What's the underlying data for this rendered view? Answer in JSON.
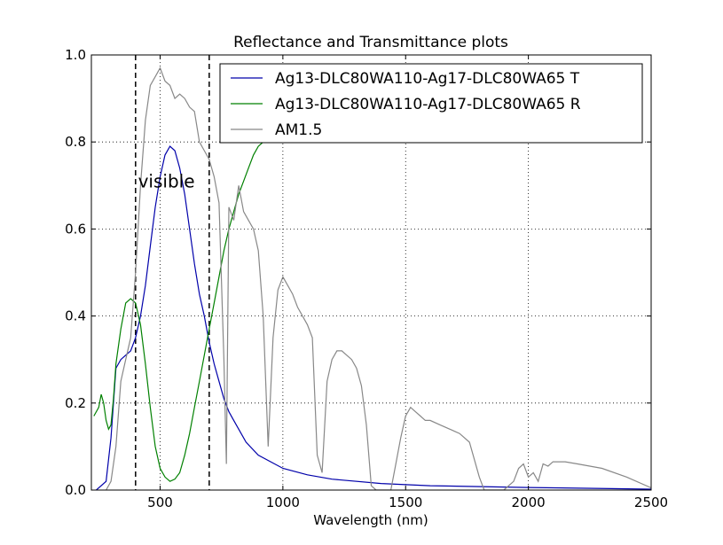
{
  "chart_data": {
    "type": "line",
    "title": "Reflectance and Transmittance plots",
    "xlabel": "Wavelength (nm)",
    "ylabel": "",
    "xlim": [
      220,
      2500
    ],
    "ylim": [
      0,
      1.0
    ],
    "xticks": [
      500,
      1000,
      1500,
      2000,
      2500
    ],
    "yticks": [
      0.0,
      0.2,
      0.4,
      0.6,
      0.8,
      1.0
    ],
    "xtick_labels": [
      "500",
      "1000",
      "1500",
      "2000",
      "2500"
    ],
    "ytick_labels": [
      "0.0",
      "0.2",
      "0.4",
      "0.6",
      "0.8",
      "1.0"
    ],
    "grid": true,
    "legend_position": "top-right",
    "vlines": [
      400,
      700
    ],
    "annotation": {
      "text": "visible",
      "x": 410,
      "y": 0.71
    },
    "series": [
      {
        "name": "Ag13-DLC80WA110-Ag17-DLC80WA65 T",
        "color": "#0000aa",
        "x": [
          240,
          280,
          300,
          320,
          340,
          360,
          380,
          400,
          420,
          440,
          460,
          480,
          500,
          520,
          540,
          560,
          580,
          600,
          620,
          640,
          660,
          680,
          700,
          720,
          740,
          760,
          780,
          800,
          850,
          900,
          1000,
          1100,
          1200,
          1400,
          1600,
          2000,
          2500
        ],
        "y": [
          0.0,
          0.02,
          0.12,
          0.28,
          0.3,
          0.31,
          0.32,
          0.35,
          0.4,
          0.47,
          0.56,
          0.65,
          0.72,
          0.77,
          0.79,
          0.78,
          0.74,
          0.68,
          0.6,
          0.52,
          0.45,
          0.4,
          0.34,
          0.29,
          0.25,
          0.21,
          0.18,
          0.16,
          0.11,
          0.08,
          0.05,
          0.035,
          0.025,
          0.015,
          0.01,
          0.006,
          0.002
        ]
      },
      {
        "name": "Ag13-DLC80WA110-Ag17-DLC80WA65 R",
        "color": "#008000",
        "x": [
          230,
          250,
          260,
          270,
          280,
          290,
          300,
          310,
          320,
          340,
          360,
          380,
          400,
          420,
          440,
          460,
          480,
          500,
          520,
          540,
          560,
          580,
          600,
          620,
          640,
          660,
          680,
          700,
          720,
          740,
          760,
          780,
          800,
          820,
          840,
          860,
          880,
          900,
          920,
          940
        ],
        "y": [
          0.17,
          0.19,
          0.22,
          0.2,
          0.16,
          0.14,
          0.15,
          0.21,
          0.29,
          0.37,
          0.43,
          0.44,
          0.43,
          0.38,
          0.29,
          0.19,
          0.1,
          0.05,
          0.03,
          0.02,
          0.025,
          0.04,
          0.08,
          0.13,
          0.19,
          0.25,
          0.31,
          0.37,
          0.43,
          0.49,
          0.55,
          0.6,
          0.64,
          0.68,
          0.71,
          0.74,
          0.77,
          0.79,
          0.8,
          0.82
        ]
      },
      {
        "name": "AM1.5",
        "color": "#888888",
        "x": [
          280,
          300,
          320,
          340,
          360,
          380,
          400,
          420,
          440,
          460,
          480,
          500,
          520,
          540,
          560,
          580,
          600,
          620,
          640,
          660,
          680,
          700,
          720,
          740,
          760,
          770,
          780,
          800,
          820,
          840,
          860,
          880,
          900,
          920,
          940,
          960,
          980,
          1000,
          1020,
          1040,
          1060,
          1080,
          1100,
          1120,
          1140,
          1160,
          1180,
          1200,
          1220,
          1240,
          1260,
          1280,
          1300,
          1320,
          1340,
          1360,
          1380,
          1400,
          1420,
          1440,
          1460,
          1480,
          1500,
          1520,
          1540,
          1560,
          1580,
          1600,
          1640,
          1680,
          1720,
          1760,
          1800,
          1820,
          1850,
          1900,
          1940,
          1960,
          1980,
          2000,
          2020,
          2040,
          2060,
          2080,
          2100,
          2150,
          2200,
          2300,
          2400,
          2500
        ],
        "y": [
          0.0,
          0.02,
          0.1,
          0.25,
          0.3,
          0.35,
          0.5,
          0.7,
          0.85,
          0.93,
          0.95,
          0.97,
          0.94,
          0.93,
          0.9,
          0.91,
          0.9,
          0.88,
          0.87,
          0.8,
          0.78,
          0.76,
          0.72,
          0.66,
          0.3,
          0.06,
          0.65,
          0.62,
          0.7,
          0.64,
          0.62,
          0.6,
          0.55,
          0.4,
          0.1,
          0.35,
          0.46,
          0.49,
          0.47,
          0.45,
          0.42,
          0.4,
          0.38,
          0.35,
          0.08,
          0.04,
          0.25,
          0.3,
          0.32,
          0.32,
          0.31,
          0.3,
          0.28,
          0.24,
          0.15,
          0.01,
          0.0,
          0.0,
          0.0,
          0.0,
          0.06,
          0.12,
          0.17,
          0.19,
          0.18,
          0.17,
          0.16,
          0.16,
          0.15,
          0.14,
          0.13,
          0.11,
          0.03,
          0.0,
          0.0,
          0.0,
          0.02,
          0.05,
          0.06,
          0.03,
          0.04,
          0.02,
          0.06,
          0.055,
          0.065,
          0.065,
          0.06,
          0.05,
          0.03,
          0.005
        ]
      }
    ]
  }
}
